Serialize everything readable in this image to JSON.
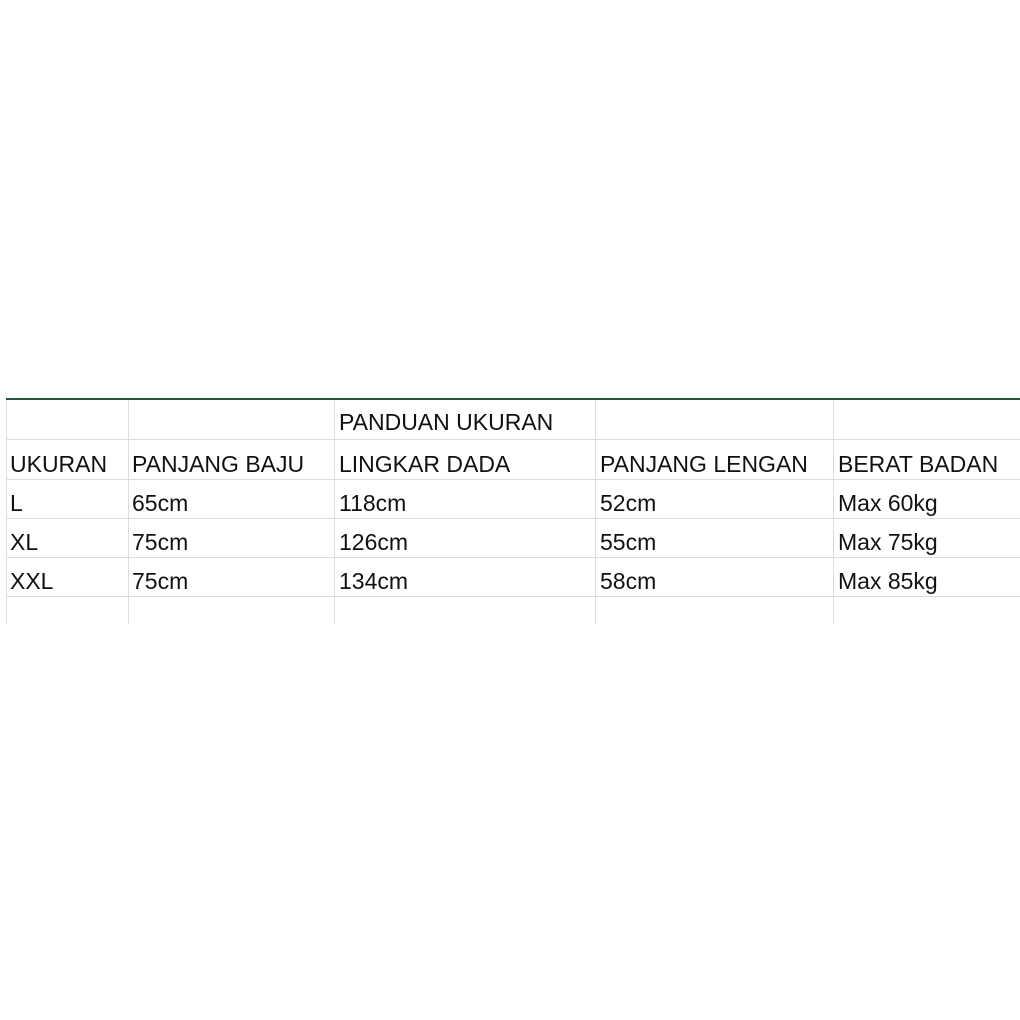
{
  "title": "PANDUAN UKURAN",
  "headers": [
    "UKURAN",
    "PANJANG BAJU",
    "LINGKAR DADA",
    "PANJANG LENGAN",
    "BERAT BADAN"
  ],
  "rows": [
    [
      "L",
      "65cm",
      "118cm",
      "52cm",
      "Max 60kg"
    ],
    [
      "XL",
      "75cm",
      "126cm",
      "55cm",
      "Max 75kg"
    ],
    [
      "XXL",
      "75cm",
      "134cm",
      "58cm",
      "Max 85kg"
    ]
  ]
}
